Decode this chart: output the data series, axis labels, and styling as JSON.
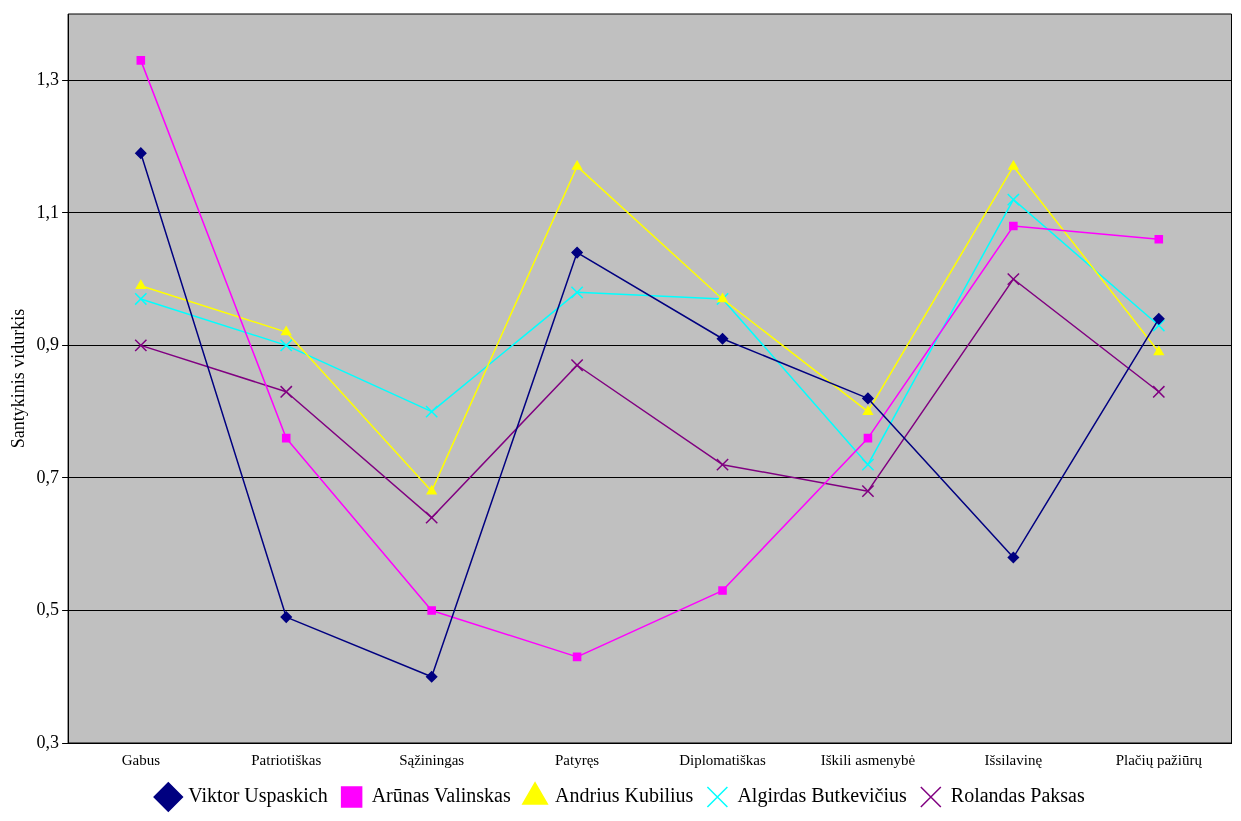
{
  "chart_data": {
    "type": "line",
    "ylabel": "Santykinis vidurkis",
    "categories": [
      "Gabus",
      "Patriotiškas",
      "Sąžiningas",
      "Patyręs",
      "Diplomatiškas",
      "Iškili asmenybė",
      "Išsilavinę",
      "Plačių pažiūrų"
    ],
    "series": [
      {
        "name": "Viktor Uspaskich",
        "color": "#000080",
        "marker": "diamond",
        "values": [
          1.19,
          0.49,
          0.4,
          1.04,
          0.91,
          0.82,
          0.58,
          0.94
        ]
      },
      {
        "name": "Arūnas Valinskas",
        "color": "#ff00ff",
        "marker": "square",
        "values": [
          1.33,
          0.76,
          0.5,
          0.43,
          0.53,
          0.76,
          1.08,
          1.06
        ]
      },
      {
        "name": "Andrius Kubilius",
        "color": "#ffff00",
        "marker": "triangle",
        "values": [
          0.99,
          0.92,
          0.68,
          1.17,
          0.97,
          0.8,
          1.17,
          0.89
        ]
      },
      {
        "name": "Algirdas Butkevičius",
        "color": "#00ffff",
        "marker": "cross",
        "values": [
          0.97,
          0.9,
          0.8,
          0.98,
          0.97,
          0.72,
          1.12,
          0.93
        ]
      },
      {
        "name": "Rolandas Paksas",
        "color": "#800080",
        "marker": "cross",
        "values": [
          0.9,
          0.83,
          0.64,
          0.87,
          0.72,
          0.68,
          1.0,
          0.83
        ]
      }
    ],
    "ylim": [
      0.3,
      1.4
    ],
    "yticks": [
      {
        "value": 0.3,
        "label": "0,3"
      },
      {
        "value": 0.5,
        "label": "0,5"
      },
      {
        "value": 0.7,
        "label": "0,7"
      },
      {
        "value": 0.9,
        "label": "0,9"
      },
      {
        "value": 1.1,
        "label": "1,1"
      },
      {
        "value": 1.3,
        "label": "1,3"
      }
    ],
    "grid": "y",
    "legend": "bottom",
    "line_style": "solid"
  }
}
